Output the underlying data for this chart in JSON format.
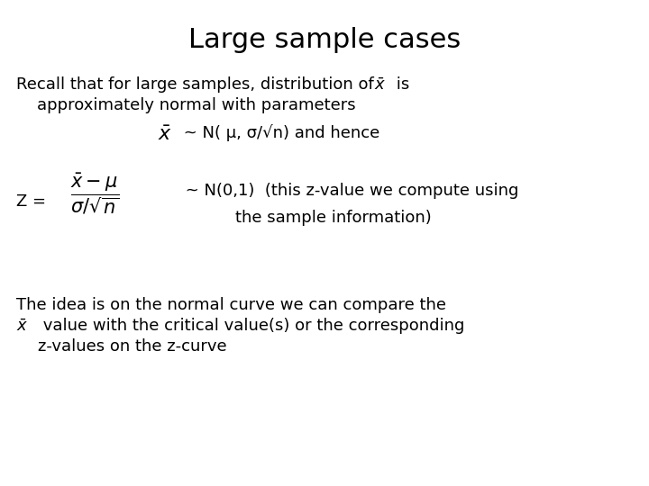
{
  "title": "Large sample cases",
  "title_fontsize": 22,
  "body_fontsize": 13,
  "math_fontsize": 13,
  "background_color": "#ffffff",
  "text_color": "#000000",
  "line1a": "Recall that for large samples, distribution of",
  "line1b": " is",
  "line2": "    approximately normal with parameters",
  "line3_text": " ~ N( μ, σ/√n) and hence",
  "line4_z": "Z = ",
  "line4_end": " ~ N(0,1)  (this z-value we compute using",
  "line5": "the sample information)",
  "line6": "The idea is on the normal curve we can compare the",
  "line7_text": " value with the critical value(s) or the corresponding",
  "line8": "   z-values on the z-curve"
}
